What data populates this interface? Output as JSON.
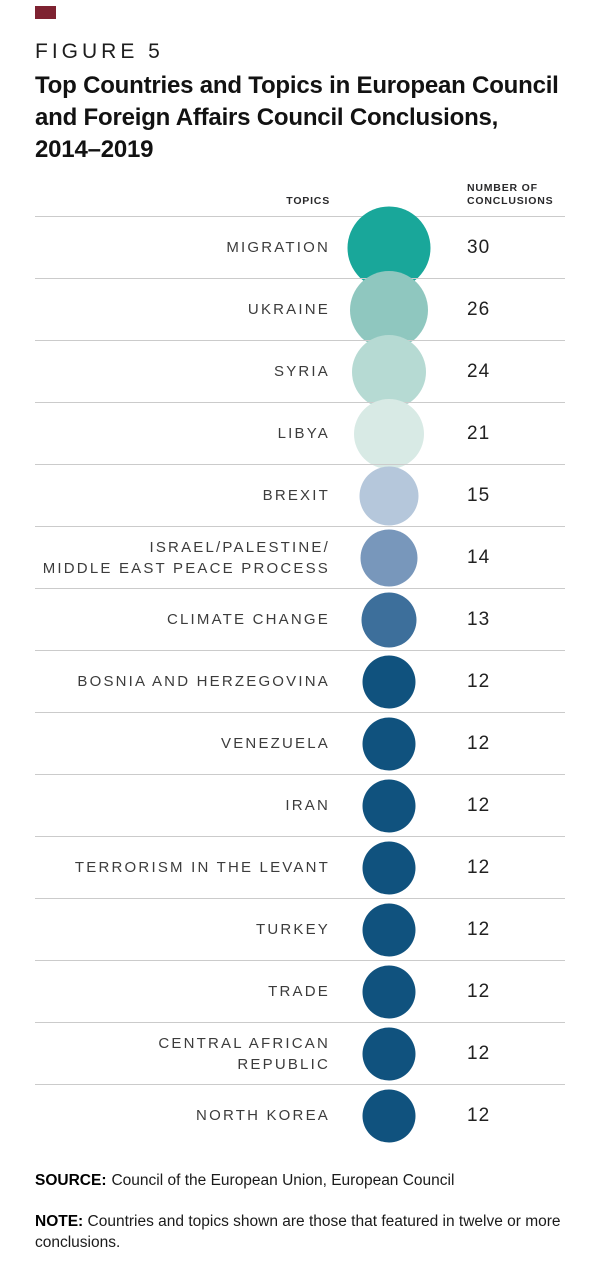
{
  "figure": {
    "marker_color": "#7E2231",
    "kicker": "FIGURE 5",
    "title_lines": [
      "Top Countries and Topics in European Council",
      "and Foreign Affairs Council Conclusions,",
      "2014–2019"
    ]
  },
  "table": {
    "topics_header": "TOPICS",
    "number_header_lines": [
      "NUMBER OF",
      "CONCLUSIONS"
    ]
  },
  "chart_data": {
    "type": "table",
    "encoding": "circle size encodes number of conclusions; circle color shades from teal (high) to dark blue (low)",
    "title": "Top Countries and Topics in European Council and Foreign Affairs Council Conclusions, 2014–2019",
    "columns": [
      "TOPICS",
      "NUMBER OF CONCLUSIONS"
    ],
    "value_range": [
      12,
      30
    ],
    "rows": [
      {
        "topic": "MIGRATION",
        "value": 30,
        "color": "#19A79A"
      },
      {
        "topic": "UKRAINE",
        "value": 26,
        "color": "#8FC7BF"
      },
      {
        "topic": "SYRIA",
        "value": 24,
        "color": "#B6DAD3"
      },
      {
        "topic": "LIBYA",
        "value": 21,
        "color": "#D8EAE5"
      },
      {
        "topic": "BREXIT",
        "value": 15,
        "color": "#B5C7DB"
      },
      {
        "topic": "ISRAEL/PALESTINE/MIDDLE EAST PEACE PROCESS",
        "topic_lines": [
          "ISRAEL/PALESTINE/",
          "MIDDLE EAST PEACE PROCESS"
        ],
        "value": 14,
        "color": "#7897BB"
      },
      {
        "topic": "CLIMATE CHANGE",
        "value": 13,
        "color": "#3D6F9B"
      },
      {
        "topic": "BOSNIA AND HERZEGOVINA",
        "value": 12,
        "color": "#10527E"
      },
      {
        "topic": "VENEZUELA",
        "value": 12,
        "color": "#10527E"
      },
      {
        "topic": "IRAN",
        "value": 12,
        "color": "#10527E"
      },
      {
        "topic": "TERRORISM IN THE LEVANT",
        "value": 12,
        "color": "#10527E"
      },
      {
        "topic": "TURKEY",
        "value": 12,
        "color": "#10527E"
      },
      {
        "topic": "TRADE",
        "value": 12,
        "color": "#10527E"
      },
      {
        "topic": "CENTRAL AFRICAN REPUBLIC",
        "topic_lines": [
          "CENTRAL AFRICAN",
          "REPUBLIC"
        ],
        "value": 12,
        "color": "#10527E"
      },
      {
        "topic": "NORTH KOREA",
        "value": 12,
        "color": "#10527E"
      }
    ]
  },
  "footer": {
    "source_label": "SOURCE:",
    "source_text": "Council of the European Union, European Council",
    "note_label": "NOTE:",
    "note_text": "Countries and topics shown are those that featured in twelve or more conclusions."
  }
}
